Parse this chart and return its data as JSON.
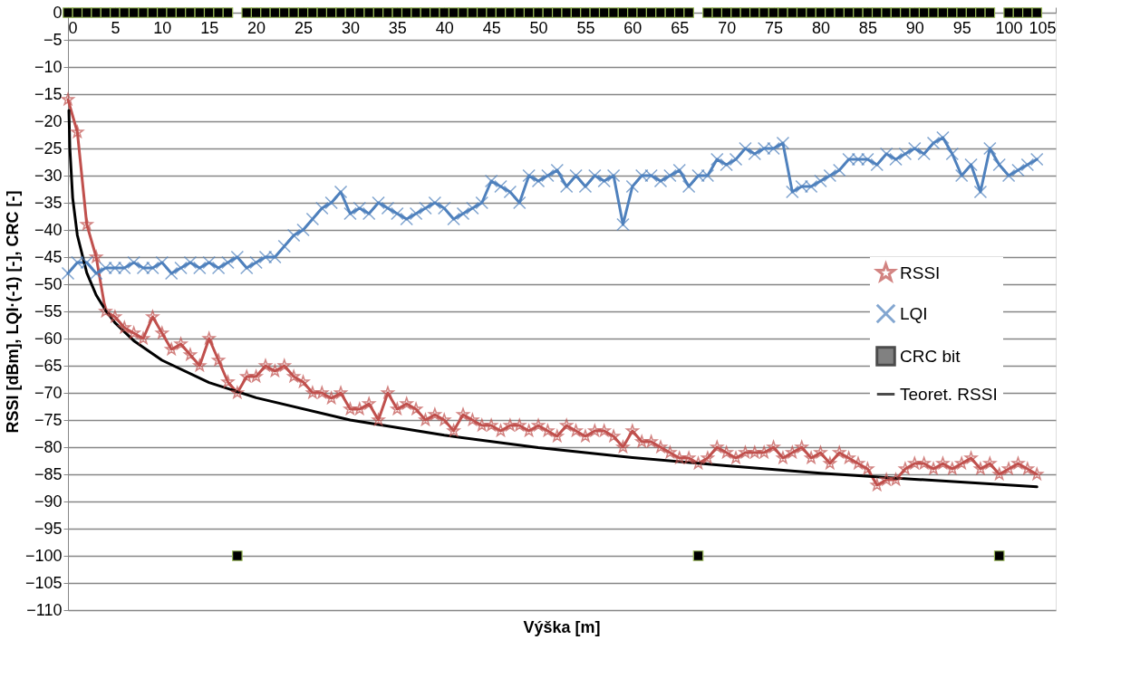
{
  "chart_data": {
    "type": "line",
    "xlabel": "Výška [m]",
    "ylabel": "RSSI [dBm], LQI·(-1) [-], CRC [-]",
    "x": [
      0,
      1,
      2,
      3,
      4,
      5,
      6,
      7,
      8,
      9,
      10,
      11,
      12,
      13,
      14,
      15,
      16,
      17,
      18,
      19,
      20,
      21,
      22,
      23,
      24,
      25,
      26,
      27,
      28,
      29,
      30,
      31,
      32,
      33,
      34,
      35,
      36,
      37,
      38,
      39,
      40,
      41,
      42,
      43,
      44,
      45,
      46,
      47,
      48,
      49,
      50,
      51,
      52,
      53,
      54,
      55,
      56,
      57,
      58,
      59,
      60,
      61,
      62,
      63,
      64,
      65,
      66,
      67,
      68,
      69,
      70,
      71,
      72,
      73,
      74,
      75,
      76,
      77,
      78,
      79,
      80,
      81,
      82,
      83,
      84,
      85,
      86,
      87,
      88,
      89,
      90,
      91,
      92,
      93,
      94,
      95,
      96,
      97,
      98,
      99,
      100,
      101,
      102,
      103
    ],
    "xlim": [
      0,
      105
    ],
    "xticks": [
      0,
      5,
      10,
      15,
      20,
      25,
      30,
      35,
      40,
      45,
      50,
      55,
      60,
      65,
      70,
      75,
      80,
      85,
      90,
      95,
      100,
      105
    ],
    "ylim": [
      -110,
      0
    ],
    "yticks": [
      -110,
      -105,
      -100,
      -95,
      -90,
      -85,
      -80,
      -75,
      -70,
      -65,
      -60,
      -55,
      -50,
      -45,
      -40,
      -35,
      -30,
      -25,
      -20,
      -15,
      -10,
      -5,
      0
    ],
    "grid": "y",
    "legend": "right",
    "line_style": "solid",
    "series": [
      {
        "name": "RSSI",
        "marker": "star",
        "color": "#c0504d",
        "values": [
          -16,
          -22,
          -39,
          -45,
          -55,
          -56,
          -58,
          -59,
          -60,
          -56,
          -59,
          -62,
          -61,
          -63,
          -65,
          -60,
          -64,
          -68,
          -70,
          -67,
          -67,
          -65,
          -66,
          -65,
          -67,
          -68,
          -70,
          -70,
          -71,
          -70,
          -73,
          -73,
          -72,
          -75,
          -70,
          -73,
          -72,
          -73,
          -75,
          -74,
          -75,
          -77,
          -74,
          -75,
          -76,
          -76,
          -77,
          -76,
          -76,
          -77,
          -76,
          -77,
          -78,
          -76,
          -77,
          -78,
          -77,
          -77,
          -78,
          -80,
          -77,
          -79,
          -79,
          -80,
          -81,
          -82,
          -82,
          -83,
          -82,
          -80,
          -81,
          -82,
          -81,
          -81,
          -81,
          -80,
          -82,
          -81,
          -80,
          -82,
          -81,
          -83,
          -81,
          -82,
          -83,
          -84,
          -87,
          -86,
          -86,
          -84,
          -83,
          -83,
          -84,
          -83,
          -84,
          -83,
          -82,
          -84,
          -83,
          -85,
          -84,
          -83,
          -84,
          -85
        ]
      },
      {
        "name": "LQI",
        "marker": "cross",
        "color": "#4f81bd",
        "values": [
          -48,
          -46,
          -46,
          -48,
          -47,
          -47,
          -47,
          -46,
          -47,
          -47,
          -46,
          -48,
          -47,
          -46,
          -47,
          -46,
          -47,
          -46,
          -45,
          -47,
          -46,
          -45,
          -45,
          -43,
          -41,
          -40,
          -38,
          -36,
          -35,
          -33,
          -37,
          -36,
          -37,
          -35,
          -36,
          -37,
          -38,
          -37,
          -36,
          -35,
          -36,
          -38,
          -37,
          -36,
          -35,
          -31,
          -32,
          -33,
          -35,
          -30,
          -31,
          -30,
          -29,
          -32,
          -30,
          -32,
          -30,
          -31,
          -30,
          -39,
          -32,
          -30,
          -30,
          -31,
          -30,
          -29,
          -32,
          -30,
          -30,
          -27,
          -28,
          -27,
          -25,
          -26,
          -25,
          -25,
          -24,
          -33,
          -32,
          -32,
          -31,
          -30,
          -29,
          -27,
          -27,
          -27,
          -28,
          -26,
          -27,
          -26,
          -25,
          -26,
          -24,
          -23,
          -26,
          -30,
          -28,
          -33,
          -25,
          -28,
          -30,
          -29,
          -28,
          -27
        ]
      },
      {
        "name": "CRC bit",
        "type": "scatter",
        "marker": "square",
        "color": "#000000",
        "values": [
          0,
          0,
          0,
          0,
          0,
          0,
          0,
          0,
          0,
          0,
          0,
          0,
          0,
          0,
          0,
          0,
          0,
          0,
          -100,
          0,
          0,
          0,
          0,
          0,
          0,
          0,
          0,
          0,
          0,
          0,
          0,
          0,
          0,
          0,
          0,
          0,
          0,
          0,
          0,
          0,
          0,
          0,
          0,
          0,
          0,
          0,
          0,
          0,
          0,
          0,
          0,
          0,
          0,
          0,
          0,
          0,
          0,
          0,
          0,
          0,
          0,
          0,
          0,
          0,
          0,
          0,
          0,
          -100,
          0,
          0,
          0,
          0,
          0,
          0,
          0,
          0,
          0,
          0,
          0,
          0,
          0,
          0,
          0,
          0,
          0,
          0,
          0,
          0,
          0,
          0,
          0,
          0,
          0,
          0,
          0,
          0,
          0,
          0,
          0,
          -100,
          0,
          0,
          0,
          0
        ]
      },
      {
        "name": "Teoret. RSSI",
        "marker": "none",
        "color": "#000000",
        "x": [
          0.1,
          0.2,
          0.5,
          1,
          2,
          3,
          4,
          5,
          7,
          10,
          15,
          20,
          30,
          40,
          50,
          60,
          70,
          80,
          90,
          103
        ],
        "values": [
          -18.0,
          -24.9,
          -34.1,
          -41.0,
          -47.9,
          -52.0,
          -54.8,
          -57.1,
          -60.4,
          -64.0,
          -68.1,
          -70.9,
          -75.0,
          -77.8,
          -80.1,
          -81.9,
          -83.4,
          -84.8,
          -85.9,
          -87.3
        ]
      }
    ]
  }
}
